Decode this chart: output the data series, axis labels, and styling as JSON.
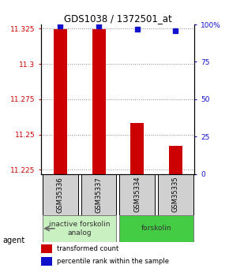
{
  "title": "GDS1038 / 1372501_at",
  "samples": [
    "GSM35336",
    "GSM35337",
    "GSM35334",
    "GSM35335"
  ],
  "red_values": [
    11.3245,
    11.3245,
    11.258,
    11.242
  ],
  "blue_values": [
    99,
    99,
    97,
    96
  ],
  "y_min": 11.222,
  "y_max": 11.328,
  "y_ticks_left": [
    11.225,
    11.25,
    11.275,
    11.3,
    11.325
  ],
  "y_ticks_right_vals": [
    0,
    25,
    50,
    75,
    100
  ],
  "y_ticks_right_labels": [
    "0",
    "25",
    "50",
    "75",
    "100%"
  ],
  "bar_bottom": 11.222,
  "bar_color": "#cc0000",
  "dot_color": "#1111cc",
  "agent_groups": [
    {
      "label": "inactive forskolin\nanalog",
      "indices": [
        0,
        1
      ],
      "color": "#c8f0c0"
    },
    {
      "label": "forskolin",
      "indices": [
        2,
        3
      ],
      "color": "#44cc44"
    }
  ],
  "sample_box_color": "#d0d0d0",
  "legend_red": "transformed count",
  "legend_blue": "percentile rank within the sample",
  "grid_color": "#888888",
  "axis_left_color": "#cc0000",
  "axis_right_color": "#1111cc",
  "bar_width": 0.35
}
